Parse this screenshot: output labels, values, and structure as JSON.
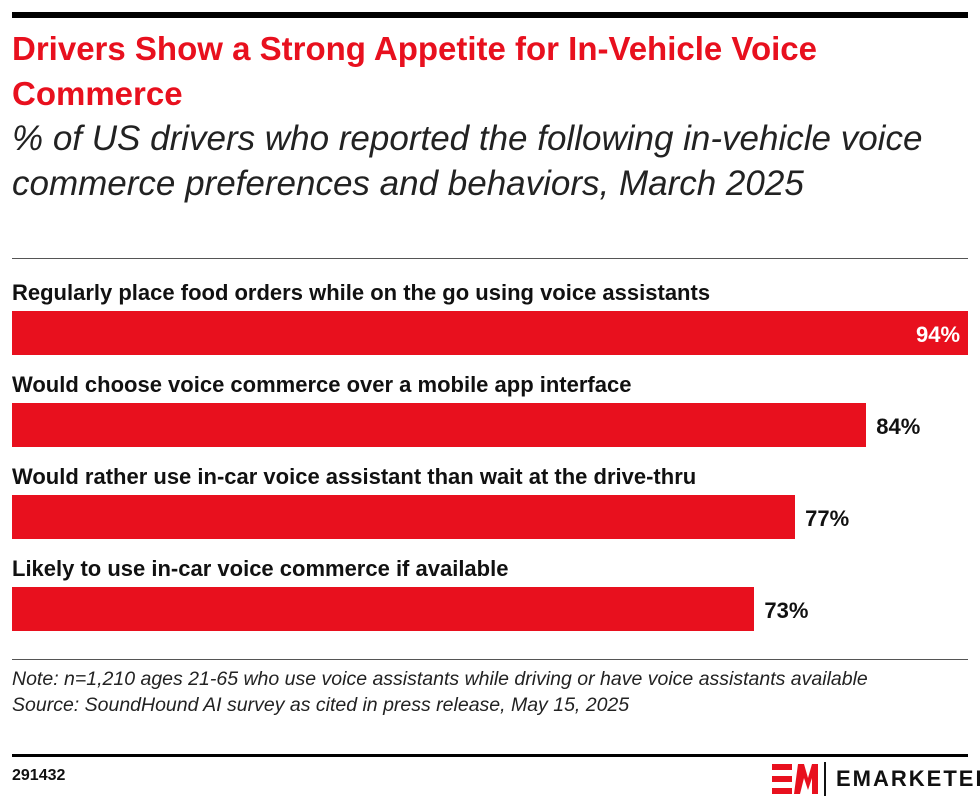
{
  "title": "Drivers Show a Strong Appetite for In-Vehicle Voice Commerce",
  "subtitle": "% of US drivers who reported the following in-vehicle voice commerce preferences and behaviors, March 2025",
  "chart_data": {
    "type": "bar",
    "orientation": "horizontal",
    "categories": [
      "Regularly place food orders while on the go using voice assistants",
      "Would choose voice commerce over a mobile app interface",
      "Would rather use in-car voice assistant than wait at the drive-thru",
      "Likely to use in-car voice commerce if available"
    ],
    "values": [
      94,
      84,
      77,
      73
    ],
    "value_labels": [
      "94%",
      "84%",
      "77%",
      "73%"
    ],
    "xlim": [
      0,
      94
    ],
    "grid": false,
    "bar_color": "#e8101e"
  },
  "note": "Note: n=1,210 ages 21-65 who use voice assistants while driving or have voice assistants available",
  "source": "Source: SoundHound AI survey as cited in press release, May 15, 2025",
  "chart_id": "291432",
  "logo": {
    "text": "EMARKETER",
    "mark": "EM"
  }
}
